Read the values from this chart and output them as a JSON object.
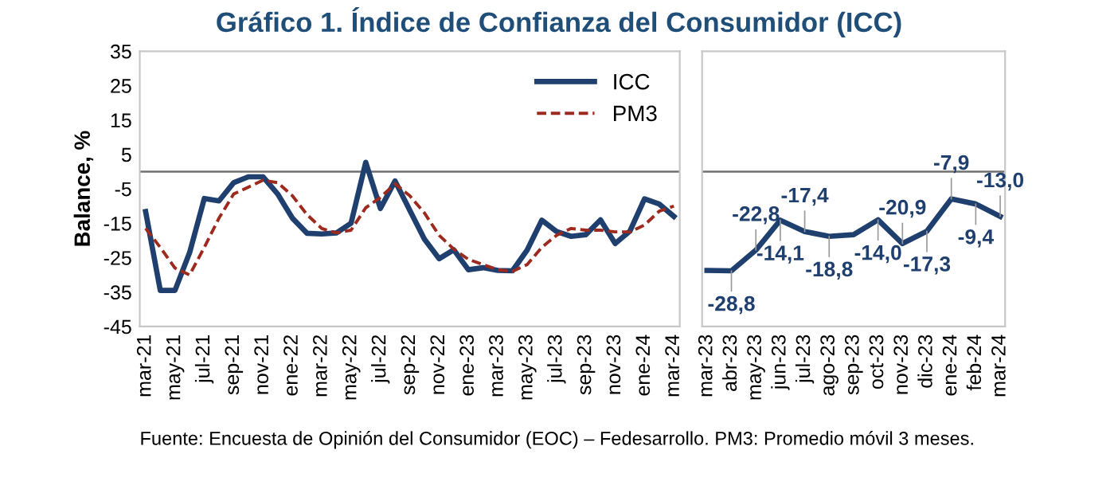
{
  "chart_data": [
    {
      "type": "line",
      "title": "Gráfico 1. Índice de Confianza del Consumidor (ICC)",
      "ylabel": "Balance, %",
      "categories": [
        "mar-21",
        null,
        "may-21",
        null,
        "jul-21",
        null,
        "sep-21",
        null,
        "nov-21",
        null,
        "ene-22",
        null,
        "mar-22",
        null,
        "may-22",
        null,
        "jul-22",
        null,
        "sep-22",
        null,
        "nov-22",
        null,
        "ene-23",
        null,
        "mar-23",
        null,
        "may-23",
        null,
        "jul-23",
        null,
        "sep-23",
        null,
        "nov-23",
        null,
        "ene-24",
        null,
        "mar-24"
      ],
      "series": [
        {
          "name": "ICC",
          "color": "#1f3f6e",
          "line_style": "solid",
          "values": [
            -11.6,
            -34.5,
            -34.5,
            -23.5,
            -7.8,
            -8.5,
            -3.2,
            -1.5,
            -1.5,
            -6.5,
            -13.5,
            -17.9,
            -18.1,
            -17.8,
            -15.0,
            2.7,
            -10.7,
            -2.7,
            -11.2,
            -19.6,
            -25.3,
            -22.7,
            -28.5,
            -27.9,
            -28.7,
            -28.8,
            -22.8,
            -14.1,
            -17.4,
            -18.8,
            -18.3,
            -14.0,
            -20.9,
            -17.3,
            -7.9,
            -9.4,
            -13.0
          ]
        },
        {
          "name": "PM3",
          "color": "#9c2a1e",
          "line_style": "dashed",
          "values": [
            -16.5,
            -22,
            -28,
            -30,
            -22,
            -13.5,
            -6.5,
            -4.5,
            -2.5,
            -3.2,
            -7,
            -12.5,
            -16.5,
            -17.8,
            -17,
            -10.5,
            -7.5,
            -3.5,
            -7,
            -12,
            -18.5,
            -22.5,
            -25.5,
            -27,
            -28.5,
            -29,
            -27,
            -22,
            -18.5,
            -16.5,
            -17,
            -17,
            -17.5,
            -17.5,
            -15.5,
            -11.5,
            -10
          ]
        }
      ],
      "ylim": [
        -45,
        35
      ],
      "yticks": [
        -45,
        -35,
        -25,
        -15,
        -5,
        5,
        15,
        25,
        35
      ],
      "grid": false,
      "legend": "top right",
      "ref_lines": [
        {
          "axis": "y",
          "value": 0,
          "color": "#707070"
        }
      ],
      "annotations": [
        "Fuente: Encuesta de Opinión del Consumidor (EOC) – Fedesarrollo. PM3: Promedio móvil 3 meses."
      ]
    },
    {
      "type": "line",
      "categories": [
        "mar-23",
        "abr-23",
        "may-23",
        "jun-23",
        "jul-23",
        "ago-23",
        "sep-23",
        "oct-23",
        "nov-23",
        "dic-23",
        "ene-24",
        "feb-24",
        "mar-24"
      ],
      "series": [
        {
          "color": "#1f3f6e",
          "values": [
            -28.7,
            -28.8,
            -22.8,
            -14.1,
            -17.4,
            -18.8,
            -18.3,
            -14.0,
            -20.9,
            -17.3,
            -7.9,
            -9.4,
            -13.0
          ],
          "value_labels": [
            null,
            "-28,8",
            "-22,8",
            "-14,1",
            "-17,4",
            "-18,8",
            null,
            "-14,0",
            "-20,9",
            "-17,3",
            "-7,9",
            "-9,4",
            "-13,0"
          ]
        }
      ],
      "ylim": [
        -45,
        35
      ],
      "tick_labels": "x",
      "grid": false,
      "ref_lines": [
        {
          "axis": "y",
          "value": 0,
          "color": "#707070"
        }
      ]
    }
  ]
}
